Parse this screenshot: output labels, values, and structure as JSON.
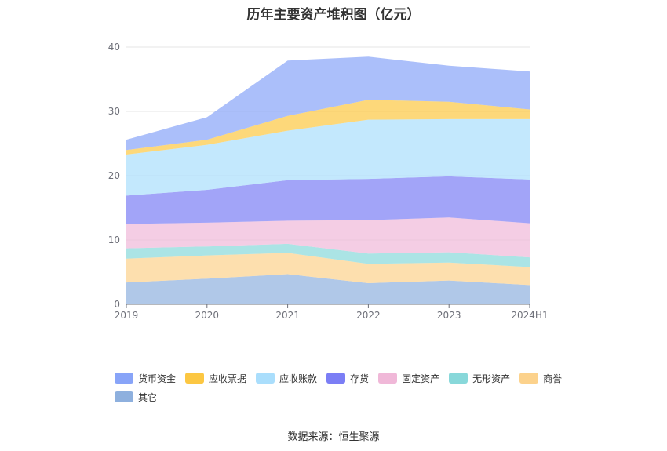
{
  "title": "历年主要资产堆积图（亿元）",
  "source": "数据来源：恒生聚源",
  "chart_data": {
    "type": "area",
    "stacked": true,
    "categories": [
      "2019",
      "2020",
      "2021",
      "2022",
      "2023",
      "2024H1"
    ],
    "ylim": [
      0,
      40
    ],
    "yticks": [
      0,
      10,
      20,
      30,
      40
    ],
    "grid": true,
    "legend_position": "bottom",
    "series": [
      {
        "name": "其它",
        "color": "#8eb0de",
        "values": [
          3.4,
          4.0,
          4.7,
          3.3,
          3.7,
          3.0
        ]
      },
      {
        "name": "商誉",
        "color": "#fcd28c",
        "values": [
          3.7,
          3.6,
          3.3,
          3.0,
          2.8,
          2.8
        ]
      },
      {
        "name": "无形资产",
        "color": "#88d8da",
        "values": [
          1.6,
          1.4,
          1.4,
          1.6,
          1.6,
          1.5
        ]
      },
      {
        "name": "固定资产",
        "color": "#f0b8d8",
        "values": [
          3.8,
          3.7,
          3.6,
          5.2,
          5.4,
          5.3
        ]
      },
      {
        "name": "存货",
        "color": "#7b7ef5",
        "values": [
          4.4,
          5.1,
          6.3,
          6.4,
          6.4,
          6.8
        ]
      },
      {
        "name": "应收账款",
        "color": "#aadefc",
        "values": [
          6.4,
          7.0,
          7.7,
          9.2,
          8.9,
          9.4
        ]
      },
      {
        "name": "应收票据",
        "color": "#fcc742",
        "values": [
          0.7,
          0.8,
          2.3,
          3.1,
          2.7,
          1.5
        ]
      },
      {
        "name": "货币资金",
        "color": "#88a4f8",
        "values": [
          1.6,
          3.5,
          8.6,
          6.7,
          5.6,
          5.9
        ]
      }
    ]
  },
  "legend_order": [
    "货币资金",
    "应收票据",
    "应收账款",
    "存货",
    "固定资产",
    "无形资产",
    "商誉",
    "其它"
  ]
}
